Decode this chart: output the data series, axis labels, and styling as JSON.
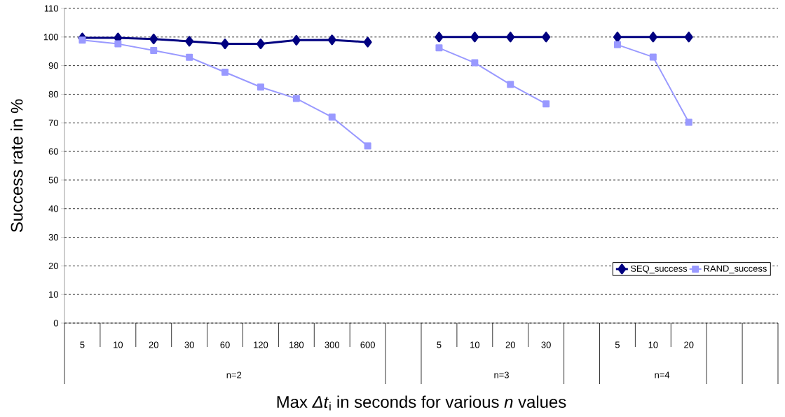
{
  "chart_data": {
    "type": "line",
    "ylabel": "Success rate in %",
    "xlabel": "Max *Δt*$_{i}$ in seconds for  various *n* values",
    "categories": [
      "5",
      "10",
      "20",
      "30",
      "60",
      "120",
      "180",
      "300",
      "600",
      null,
      "5",
      "10",
      "20",
      "30",
      null,
      "5",
      "10",
      "20",
      null,
      null
    ],
    "annotations": [
      "n=2",
      "n=3",
      "n=4"
    ],
    "series": [
      {
        "name": "SEQ_success",
        "color": "#000080",
        "marker": "diamond",
        "values": [
          99.7,
          99.7,
          99.3,
          98.5,
          97.6,
          97.6,
          98.9,
          99.0,
          98.2,
          null,
          100,
          100,
          100,
          100,
          null,
          100,
          100,
          100,
          null,
          null
        ]
      },
      {
        "name": "RAND_success",
        "color": "#9999ff",
        "marker": "square",
        "values": [
          98.9,
          97.6,
          95.3,
          92.9,
          87.7,
          82.5,
          78.5,
          72.0,
          61.9,
          null,
          96.2,
          91.0,
          83.4,
          76.6,
          null,
          97.3,
          93.0,
          70.2,
          null,
          null
        ]
      }
    ],
    "ylim": [
      0,
      110
    ],
    "yticks": [
      0,
      10,
      20,
      30,
      40,
      50,
      60,
      70,
      80,
      90,
      100,
      110
    ],
    "grid": "y",
    "legend": "bottom right"
  }
}
